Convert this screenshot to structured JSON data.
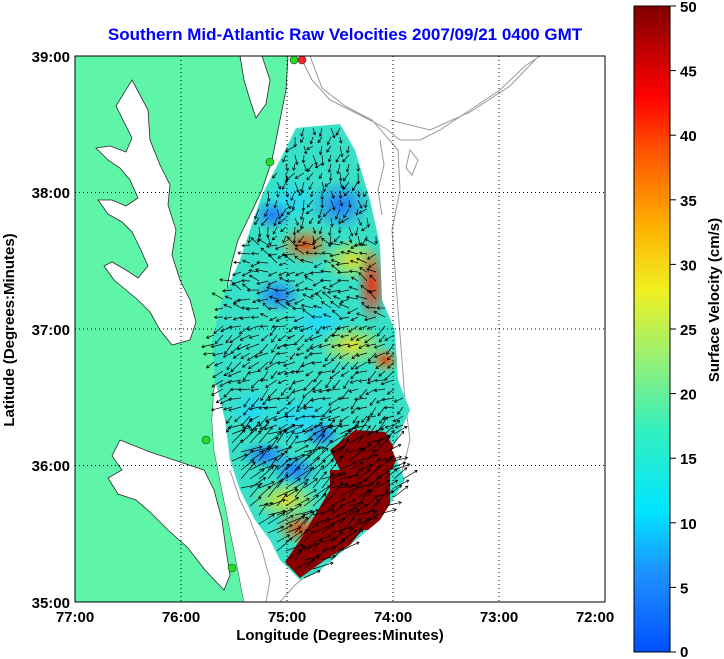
{
  "title": "Southern Mid-Atlantic Raw Velocities 2007/09/21 0400 GMT",
  "x_axis": {
    "label": "Longitude (Degrees:Minutes)",
    "ticks": [
      "77:00",
      "76:00",
      "75:00",
      "74:00",
      "73:00",
      "72:00"
    ]
  },
  "y_axis": {
    "label": "Latitude (Degrees:Minutes)",
    "ticks": [
      "39:00",
      "38:00",
      "37:00",
      "36:00",
      "35:00"
    ]
  },
  "colorbar": {
    "label": "Surface Velocity (cm/s)",
    "ticks": [
      "50",
      "45",
      "40",
      "35",
      "30",
      "25",
      "20",
      "15",
      "10",
      "5",
      "0"
    ],
    "range": [
      0,
      50
    ]
  },
  "colors": {
    "title": "#0000ff",
    "land": "#5ef5a8",
    "water": "#ffffff",
    "bathymetry": "#9a9a9a",
    "arrows": "#000000",
    "station": "#22dd22",
    "station_alt": "#ff2222"
  },
  "map": {
    "lon_range": [
      -77,
      -72
    ],
    "lat_range": [
      35,
      39
    ],
    "grid": true,
    "gridline_style": "dotted"
  }
}
